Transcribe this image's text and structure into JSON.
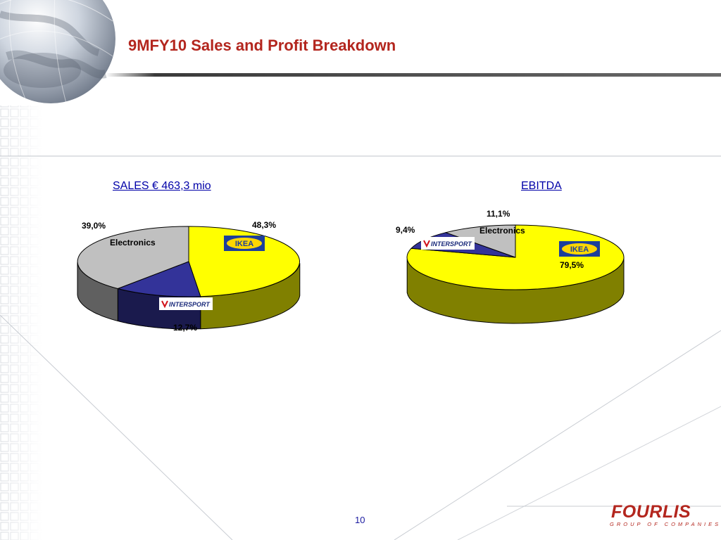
{
  "slide": {
    "title": "9MFY10 Sales and Profit Breakdown",
    "page_number": "10"
  },
  "logo": {
    "name": "FOURLIS",
    "tagline": "GROUP OF COMPANIES"
  },
  "colors": {
    "title": "#b3261e",
    "ikea_top": "#ffff00",
    "ikea_side": "#808000",
    "intersport_top": "#333399",
    "intersport_side": "#1a1a4d",
    "electronics_top": "#c0c0c0",
    "electronics_side": "#606060",
    "heading": "#0000a8"
  },
  "brand_logos": {
    "ikea": "IKEA",
    "intersport": "INTERSPORT"
  },
  "chart_data": [
    {
      "type": "pie",
      "title": "SALES € 463,3 mio",
      "series": [
        {
          "label": "IKEA",
          "value": 48.3,
          "display": "48,3%",
          "color": "#ffff00"
        },
        {
          "label": "INTERSPORT",
          "value": 12.7,
          "display": "12,7%",
          "color": "#333399"
        },
        {
          "label": "Electronics",
          "value": 39.0,
          "display": "39,0%",
          "color": "#c0c0c0"
        }
      ]
    },
    {
      "type": "pie",
      "title": "EBITDA",
      "series": [
        {
          "label": "IKEA",
          "value": 79.5,
          "display": "79,5%",
          "color": "#ffff00"
        },
        {
          "label": "INTERSPORT",
          "value": 9.4,
          "display": "9,4%",
          "color": "#333399"
        },
        {
          "label": "Electronics",
          "value": 11.1,
          "display": "11,1%",
          "color": "#c0c0c0"
        }
      ]
    }
  ]
}
